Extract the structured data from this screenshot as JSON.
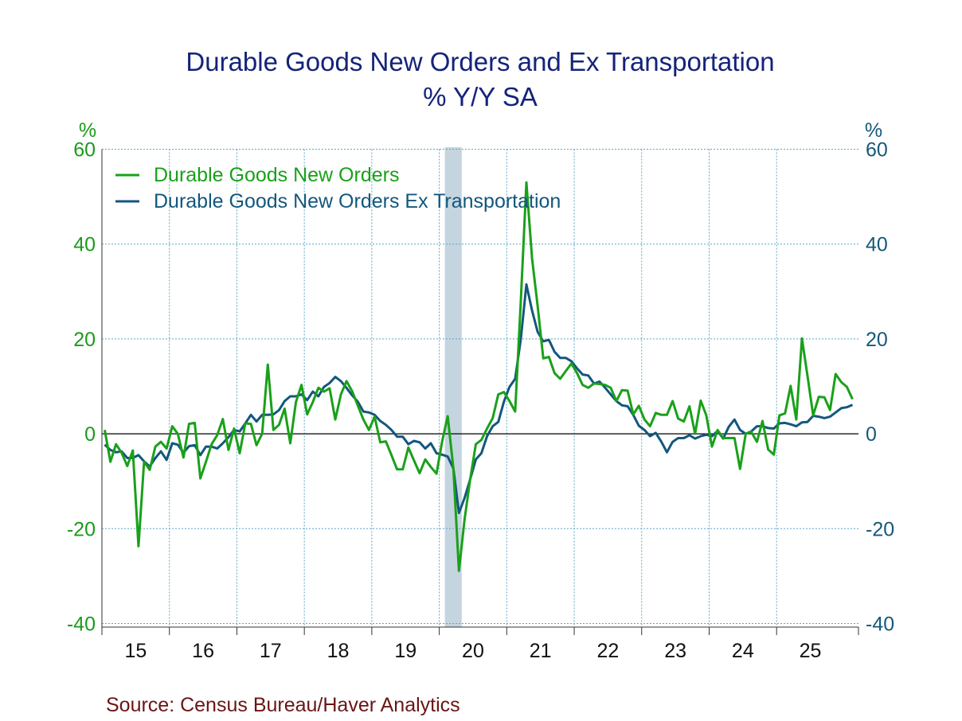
{
  "chart_data": {
    "type": "line",
    "title": "Durable Goods New Orders and Ex Transportation",
    "subtitle": "% Y/Y   SA",
    "left_unit": "%",
    "right_unit": "%",
    "ylim": [
      -40,
      60
    ],
    "yticks": [
      -40,
      -20,
      0,
      20,
      40,
      60
    ],
    "ytick_labels": [
      "-40",
      "-20",
      "0",
      "20",
      "40",
      "60"
    ],
    "x_start": "2015-01",
    "x_frequency": "monthly",
    "xtick_labels": [
      "15",
      "16",
      "17",
      "18",
      "19",
      "20",
      "21",
      "22",
      "23",
      "24",
      "25"
    ],
    "grid": true,
    "legend_position": "top-left",
    "recession_shading": {
      "start_index": 61,
      "end_index": 63
    },
    "series": [
      {
        "name": "Durable Goods New Orders",
        "color": "#1aa01a",
        "values": [
          0.8,
          -5.9,
          -2.2,
          -4.0,
          -6.8,
          -3.5,
          -23.7,
          -5.9,
          -7.6,
          -2.7,
          -1.7,
          -3.1,
          1.6,
          0.0,
          -5.0,
          2.1,
          2.3,
          -9.4,
          -5.9,
          -2.2,
          -0.3,
          3.1,
          -3.4,
          1.1,
          -4.1,
          2.2,
          2.1,
          -2.4,
          0.0,
          14.6,
          0.8,
          1.9,
          5.3,
          -2.0,
          6.7,
          10.3,
          4.1,
          6.7,
          9.7,
          8.9,
          9.6,
          3.0,
          8.3,
          11.1,
          9.0,
          6.0,
          3.0,
          0.8,
          3.6,
          -1.8,
          -1.6,
          -4.5,
          -7.5,
          -7.5,
          -2.9,
          -5.6,
          -8.3,
          -5.4,
          -7.0,
          -8.4,
          -1.7,
          3.7,
          -7.3,
          -28.9,
          -18.0,
          -9.6,
          -2.2,
          -1.3,
          1.1,
          3.3,
          8.3,
          8.8,
          6.9,
          4.7,
          28.0,
          53.0,
          37.0,
          27.0,
          15.9,
          16.2,
          12.8,
          11.6,
          13.2,
          14.8,
          12.8,
          10.3,
          9.7,
          10.6,
          10.5,
          10.3,
          9.7,
          6.9,
          9.2,
          9.1,
          4.1,
          5.9,
          3.0,
          1.6,
          4.4,
          4.0,
          4.0,
          6.9,
          3.2,
          2.6,
          5.8,
          0.0,
          7.0,
          3.9,
          -2.7,
          0.8,
          -0.9,
          -0.9,
          -0.9,
          -7.4,
          0.0,
          0.4,
          -1.7,
          2.7,
          -3.3,
          -4.4,
          3.9,
          4.3,
          10.1,
          3.0,
          20.1,
          12.2,
          3.9,
          7.8,
          7.7,
          5.0,
          12.6,
          10.9,
          9.9,
          7.3
        ]
      },
      {
        "name": "Durable Goods New Orders Ex Transportation",
        "color": "#13577d",
        "values": [
          -2.3,
          -3.4,
          -3.9,
          -3.7,
          -5.1,
          -5.1,
          -4.5,
          -5.8,
          -6.9,
          -5.1,
          -3.7,
          -5.5,
          -2.0,
          -2.3,
          -4.0,
          -2.6,
          -2.4,
          -4.5,
          -2.7,
          -2.7,
          -3.1,
          -2.0,
          -0.7,
          0.8,
          0.5,
          2.2,
          4.0,
          2.6,
          4.0,
          4.0,
          4.1,
          5.0,
          6.9,
          7.9,
          7.9,
          8.3,
          7.1,
          8.9,
          7.9,
          9.9,
          10.7,
          12.0,
          11.1,
          9.7,
          8.1,
          6.8,
          4.7,
          4.5,
          4.0,
          2.7,
          1.9,
          0.8,
          -0.6,
          -0.6,
          -2.2,
          -1.5,
          -1.8,
          -3.1,
          -2.0,
          -4.1,
          -4.4,
          -4.8,
          -7.3,
          -16.7,
          -13.5,
          -9.6,
          -5.4,
          -4.1,
          -0.5,
          1.6,
          2.5,
          6.8,
          9.9,
          11.6,
          20.0,
          31.5,
          26.0,
          21.5,
          19.5,
          19.8,
          17.3,
          16.0,
          16.0,
          15.3,
          13.8,
          12.5,
          12.3,
          10.6,
          11.0,
          9.7,
          8.3,
          6.9,
          6.0,
          5.8,
          4.0,
          1.7,
          0.8,
          -0.5,
          0.2,
          -1.7,
          -3.9,
          -1.7,
          -0.9,
          -0.9,
          -0.3,
          -1.0,
          -0.5,
          -0.2,
          -0.5,
          0.6,
          -1.0,
          1.5,
          3.0,
          0.8,
          0.0,
          0.5,
          1.6,
          1.6,
          1.2,
          1.1,
          2.2,
          2.3,
          2.0,
          1.6,
          2.4,
          2.5,
          3.8,
          3.6,
          3.3,
          3.6,
          4.5,
          5.4,
          5.6,
          6.1
        ]
      }
    ],
    "source": "Source:  Census Bureau/Haver Analytics"
  }
}
